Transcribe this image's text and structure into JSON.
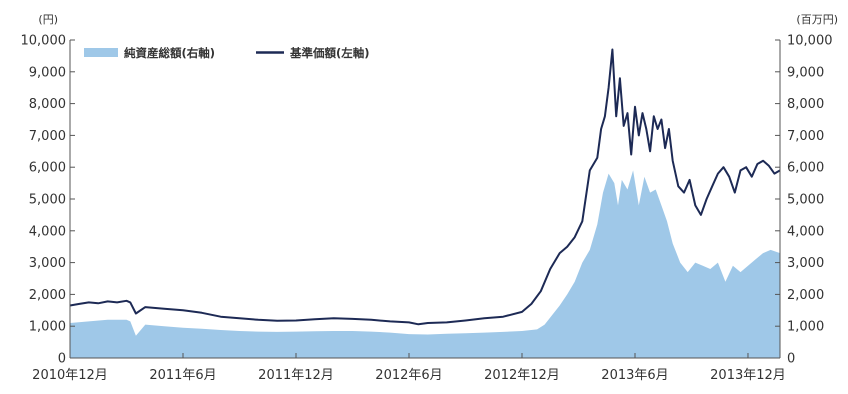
{
  "chart_data": {
    "type": "area",
    "title": "",
    "left_axis": {
      "unit": "(円)",
      "ylim": [
        0,
        10000
      ],
      "ticks": [
        0,
        1000,
        2000,
        3000,
        4000,
        5000,
        6000,
        7000,
        8000,
        9000,
        10000
      ],
      "tick_labels": [
        "0",
        "1,000",
        "2,000",
        "3,000",
        "4,000",
        "5,000",
        "6,000",
        "7,000",
        "8,000",
        "9,000",
        "10,000"
      ]
    },
    "right_axis": {
      "unit": "(百万円)",
      "ylim": [
        0,
        10000
      ],
      "ticks": [
        0,
        1000,
        2000,
        3000,
        4000,
        5000,
        6000,
        7000,
        8000,
        9000,
        10000
      ],
      "tick_labels": [
        "0",
        "1,000",
        "2,000",
        "3,000",
        "4,000",
        "5,000",
        "6,000",
        "7,000",
        "8,000",
        "9,000",
        "10,000"
      ]
    },
    "x_axis": {
      "tick_labels": [
        "2010年12月",
        "2011年6月",
        "2011年12月",
        "2012年6月",
        "2012年12月",
        "2013年6月",
        "2013年12月"
      ],
      "tick_positions": [
        0,
        6,
        12,
        18,
        24,
        30,
        36
      ],
      "range": [
        0,
        37.7
      ]
    },
    "legend": {
      "placement": "top-left",
      "entries": [
        {
          "label": "純資産総額(右軸)",
          "color": "#9fc8e8",
          "kind": "area"
        },
        {
          "label": "基準価額(左軸)",
          "color": "#1d2a55",
          "kind": "line"
        }
      ]
    },
    "series": [
      {
        "name": "純資産総額(右軸)",
        "axis": "right",
        "kind": "area",
        "color": "#9fc8e8",
        "x": [
          0,
          1,
          2,
          3,
          3.2,
          3.5,
          4,
          5,
          6,
          7,
          8,
          9,
          10,
          11,
          12,
          13,
          14,
          15,
          16,
          17,
          18,
          19,
          20,
          21,
          22,
          23,
          24,
          24.8,
          25.2,
          25.6,
          26,
          26.4,
          26.8,
          27.2,
          27.6,
          28,
          28.3,
          28.6,
          28.9,
          29.1,
          29.3,
          29.6,
          29.9,
          30.2,
          30.5,
          30.8,
          31.1,
          31.4,
          31.7,
          32,
          32.4,
          32.8,
          33.2,
          33.6,
          34,
          34.4,
          34.8,
          35.2,
          35.6,
          36,
          36.4,
          36.8,
          37.2,
          37.7
        ],
        "values": [
          1100,
          1150,
          1200,
          1200,
          1150,
          700,
          1050,
          1000,
          950,
          920,
          880,
          850,
          830,
          820,
          830,
          840,
          850,
          850,
          830,
          800,
          750,
          740,
          760,
          780,
          800,
          820,
          850,
          900,
          1050,
          1350,
          1650,
          2000,
          2400,
          3000,
          3400,
          4200,
          5200,
          5800,
          5500,
          4800,
          5600,
          5300,
          5900,
          4800,
          5700,
          5200,
          5300,
          4800,
          4300,
          3600,
          3000,
          2700,
          3000,
          2900,
          2800,
          3000,
          2400,
          2900,
          2700,
          2900,
          3100,
          3300,
          3400,
          3300
        ]
      },
      {
        "name": "基準価額(左軸)",
        "axis": "left",
        "kind": "line",
        "color": "#1d2a55",
        "x": [
          0,
          0.5,
          1,
          1.5,
          2,
          2.5,
          3,
          3.2,
          3.5,
          4,
          5,
          6,
          7,
          8,
          9,
          10,
          11,
          12,
          13,
          14,
          15,
          16,
          17,
          18,
          18.5,
          19,
          20,
          21,
          22,
          23,
          24,
          24.5,
          25,
          25.5,
          26,
          26.4,
          26.8,
          27.2,
          27.6,
          28,
          28.2,
          28.4,
          28.6,
          28.8,
          29.0,
          29.2,
          29.4,
          29.6,
          29.8,
          30.0,
          30.2,
          30.4,
          30.6,
          30.8,
          31.0,
          31.2,
          31.4,
          31.6,
          31.8,
          32.0,
          32.3,
          32.6,
          32.9,
          33.2,
          33.5,
          33.8,
          34.1,
          34.4,
          34.7,
          35.0,
          35.3,
          35.6,
          35.9,
          36.2,
          36.5,
          36.8,
          37.1,
          37.4,
          37.7
        ],
        "values": [
          1650,
          1700,
          1750,
          1720,
          1780,
          1750,
          1800,
          1750,
          1400,
          1600,
          1550,
          1500,
          1420,
          1300,
          1250,
          1200,
          1170,
          1180,
          1220,
          1250,
          1230,
          1200,
          1150,
          1120,
          1060,
          1100,
          1120,
          1180,
          1250,
          1300,
          1450,
          1700,
          2100,
          2800,
          3300,
          3500,
          3800,
          4300,
          5900,
          6300,
          7200,
          7600,
          8500,
          9700,
          7600,
          8800,
          7300,
          7700,
          6400,
          7900,
          7000,
          7700,
          7200,
          6500,
          7600,
          7200,
          7500,
          6600,
          7200,
          6200,
          5400,
          5200,
          5600,
          4800,
          4500,
          5000,
          5400,
          5800,
          6000,
          5700,
          5200,
          5900,
          6000,
          5700,
          6100,
          6200,
          6050,
          5800,
          5900
        ]
      }
    ]
  }
}
